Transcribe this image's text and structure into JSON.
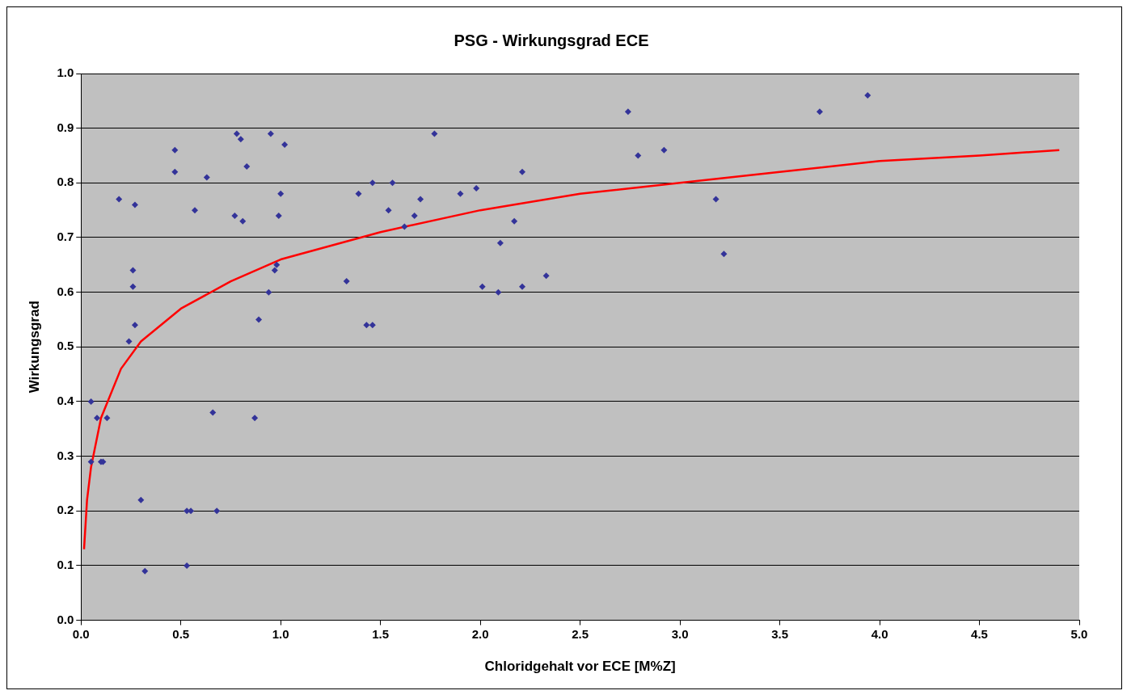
{
  "chart_data": {
    "type": "scatter",
    "title": "PSG - Wirkungsgrad ECE",
    "xlabel": "Chloridgehalt vor ECE [M%Z]",
    "ylabel": "Wirkungsgrad",
    "xlim": [
      0,
      5
    ],
    "ylim": [
      0,
      1
    ],
    "xticks": [
      {
        "value": 0,
        "label": "0.0"
      },
      {
        "value": 0.5,
        "label": "0.5"
      },
      {
        "value": 1,
        "label": "1.0"
      },
      {
        "value": 1.5,
        "label": "1.5"
      },
      {
        "value": 2,
        "label": "2.0"
      },
      {
        "value": 2.5,
        "label": "2.5"
      },
      {
        "value": 3,
        "label": "3.0"
      },
      {
        "value": 3.5,
        "label": "3.5"
      },
      {
        "value": 4,
        "label": "4.0"
      },
      {
        "value": 4.5,
        "label": "4.5"
      },
      {
        "value": 5,
        "label": "5.0"
      }
    ],
    "yticks": [
      {
        "value": 0,
        "label": "0.0"
      },
      {
        "value": 0.1,
        "label": "0.1"
      },
      {
        "value": 0.2,
        "label": "0.2"
      },
      {
        "value": 0.3,
        "label": "0.3"
      },
      {
        "value": 0.4,
        "label": "0.4"
      },
      {
        "value": 0.5,
        "label": "0.5"
      },
      {
        "value": 0.6,
        "label": "0.6"
      },
      {
        "value": 0.7,
        "label": "0.7"
      },
      {
        "value": 0.8,
        "label": "0.8"
      },
      {
        "value": 0.9,
        "label": "0.9"
      },
      {
        "value": 1,
        "label": "1.0"
      }
    ],
    "grid": "y",
    "legend": false,
    "series": [
      {
        "color": "#333399",
        "marker": "diamond",
        "x": [
          0.05,
          0.08,
          0.13,
          0.05,
          0.1,
          0.11,
          0.3,
          0.53,
          0.55,
          0.68,
          0.32,
          0.53,
          0.26,
          0.26,
          0.27,
          0.24,
          0.66,
          0.87,
          0.19,
          0.27,
          0.47,
          0.47,
          0.63,
          0.57,
          0.78,
          0.8,
          0.83,
          0.77,
          0.81,
          0.95,
          1.02,
          1.0,
          0.99,
          0.97,
          0.98,
          0.94,
          0.89,
          1.77,
          2.21,
          1.39,
          1.46,
          1.56,
          1.54,
          1.7,
          1.67,
          1.62,
          1.9,
          1.98,
          2.17,
          2.1,
          1.33,
          1.43,
          1.46,
          2.01,
          2.09,
          2.21,
          2.33,
          2.74,
          2.79,
          2.92,
          3.7,
          3.94,
          3.18,
          3.22
        ],
        "values": [
          0.4,
          0.37,
          0.37,
          0.29,
          0.29,
          0.29,
          0.22,
          0.2,
          0.2,
          0.2,
          0.09,
          0.1,
          0.64,
          0.61,
          0.54,
          0.51,
          0.38,
          0.37,
          0.77,
          0.76,
          0.86,
          0.82,
          0.81,
          0.75,
          0.89,
          0.88,
          0.83,
          0.74,
          0.73,
          0.89,
          0.87,
          0.78,
          0.74,
          0.64,
          0.65,
          0.6,
          0.55,
          0.89,
          0.82,
          0.78,
          0.8,
          0.8,
          0.75,
          0.77,
          0.74,
          0.72,
          0.78,
          0.79,
          0.73,
          0.69,
          0.62,
          0.54,
          0.54,
          0.61,
          0.6,
          0.61,
          0.63,
          0.93,
          0.85,
          0.86,
          0.93,
          0.96,
          0.77,
          0.67
        ]
      },
      {
        "type": "line",
        "color": "#ff0000",
        "marker": "none",
        "line_style": "solid",
        "x": [
          0.015,
          0.03,
          0.05,
          0.1,
          0.2,
          0.3,
          0.5,
          0.75,
          1,
          1.5,
          2,
          2.5,
          3,
          3.5,
          4,
          4.5,
          4.9
        ],
        "values": [
          0.13,
          0.22,
          0.28,
          0.37,
          0.46,
          0.51,
          0.57,
          0.62,
          0.66,
          0.71,
          0.75,
          0.78,
          0.8,
          0.82,
          0.84,
          0.85,
          0.86
        ]
      }
    ]
  }
}
